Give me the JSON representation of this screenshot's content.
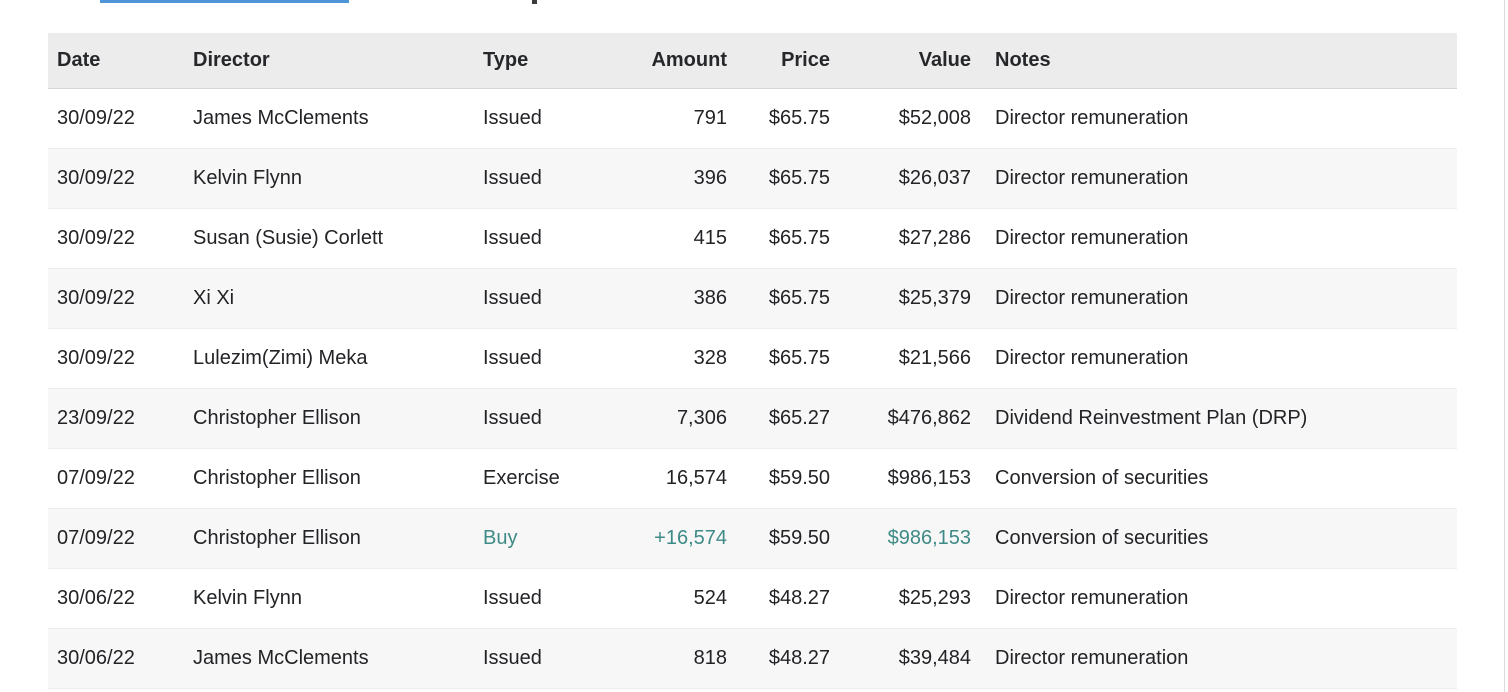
{
  "page": {
    "link_underline_color": "#4e94d9",
    "accent_color": "#3e8a86",
    "header_bg": "#ececec",
    "zebra_row_bg": "#f7f7f7"
  },
  "table": {
    "columns": [
      {
        "key": "date",
        "label": "Date",
        "align": "left"
      },
      {
        "key": "director",
        "label": "Director",
        "align": "left"
      },
      {
        "key": "type",
        "label": "Type",
        "align": "left"
      },
      {
        "key": "amount",
        "label": "Amount",
        "align": "right"
      },
      {
        "key": "price",
        "label": "Price",
        "align": "right"
      },
      {
        "key": "value",
        "label": "Value",
        "align": "right"
      },
      {
        "key": "notes",
        "label": "Notes",
        "align": "left"
      }
    ],
    "accent_fields": [
      "type",
      "amount",
      "value"
    ],
    "rows": [
      {
        "date": "30/09/22",
        "director": "James McClements",
        "type": "Issued",
        "amount": "791",
        "price": "$65.75",
        "value": "$52,008",
        "notes": "Director remuneration",
        "accent": false
      },
      {
        "date": "30/09/22",
        "director": "Kelvin Flynn",
        "type": "Issued",
        "amount": "396",
        "price": "$65.75",
        "value": "$26,037",
        "notes": "Director remuneration",
        "accent": false
      },
      {
        "date": "30/09/22",
        "director": "Susan (Susie) Corlett",
        "type": "Issued",
        "amount": "415",
        "price": "$65.75",
        "value": "$27,286",
        "notes": "Director remuneration",
        "accent": false
      },
      {
        "date": "30/09/22",
        "director": "Xi Xi",
        "type": "Issued",
        "amount": "386",
        "price": "$65.75",
        "value": "$25,379",
        "notes": "Director remuneration",
        "accent": false
      },
      {
        "date": "30/09/22",
        "director": "Lulezim(Zimi) Meka",
        "type": "Issued",
        "amount": "328",
        "price": "$65.75",
        "value": "$21,566",
        "notes": "Director remuneration",
        "accent": false
      },
      {
        "date": "23/09/22",
        "director": "Christopher Ellison",
        "type": "Issued",
        "amount": "7,306",
        "price": "$65.27",
        "value": "$476,862",
        "notes": "Dividend Reinvestment Plan (DRP)",
        "accent": false
      },
      {
        "date": "07/09/22",
        "director": "Christopher Ellison",
        "type": "Exercise",
        "amount": "16,574",
        "price": "$59.50",
        "value": "$986,153",
        "notes": "Conversion of securities",
        "accent": false
      },
      {
        "date": "07/09/22",
        "director": "Christopher Ellison",
        "type": "Buy",
        "amount": "+16,574",
        "price": "$59.50",
        "value": "$986,153",
        "notes": "Conversion of securities",
        "accent": true
      },
      {
        "date": "30/06/22",
        "director": "Kelvin Flynn",
        "type": "Issued",
        "amount": "524",
        "price": "$48.27",
        "value": "$25,293",
        "notes": "Director remuneration",
        "accent": false
      },
      {
        "date": "30/06/22",
        "director": "James McClements",
        "type": "Issued",
        "amount": "818",
        "price": "$48.27",
        "value": "$39,484",
        "notes": "Director remuneration",
        "accent": false
      }
    ]
  }
}
